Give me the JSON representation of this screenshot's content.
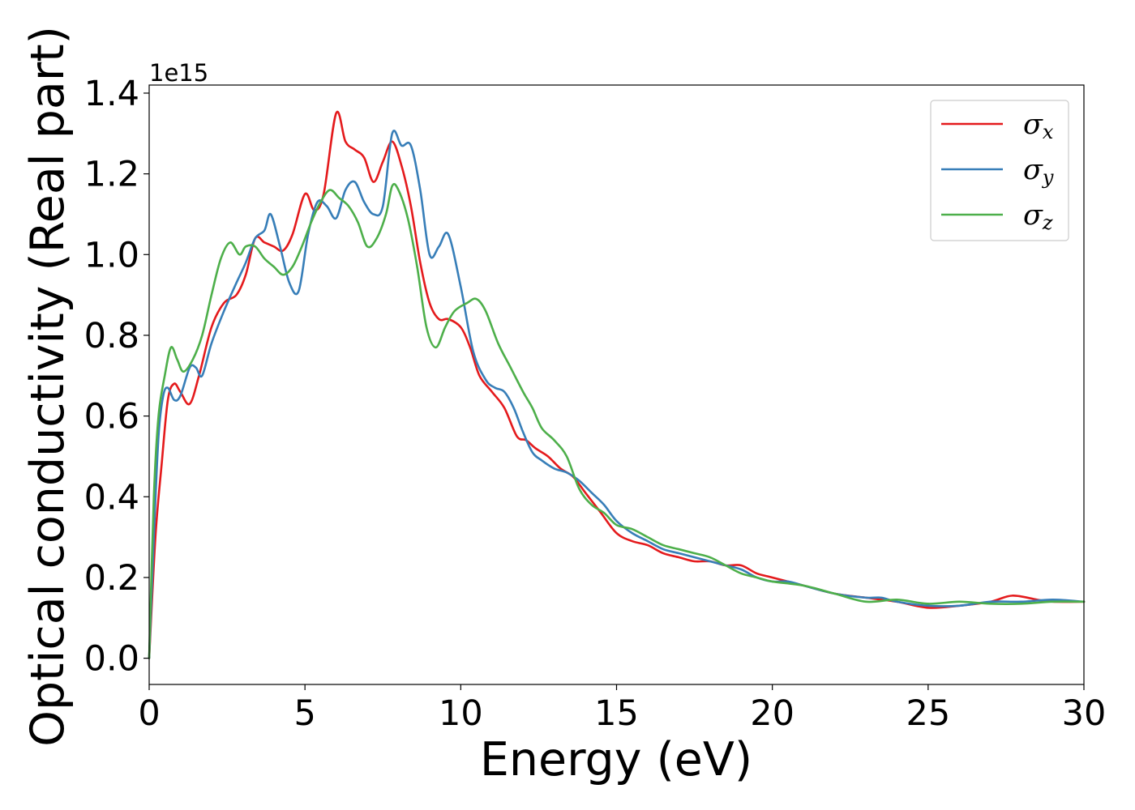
{
  "chart_data": {
    "type": "line",
    "title": "",
    "xlabel": "Energy (eV)",
    "ylabel": "Optical conductivity (Real part)",
    "y_offset_text": "1e15",
    "xlim": [
      0,
      30
    ],
    "ylim": [
      -0.065,
      1.42
    ],
    "xticks": [
      0,
      5,
      10,
      15,
      20,
      25,
      30
    ],
    "xtick_labels": [
      "0",
      "5",
      "10",
      "15",
      "20",
      "25",
      "30"
    ],
    "yticks": [
      0.0,
      0.2,
      0.4,
      0.6,
      0.8,
      1.0,
      1.2,
      1.4
    ],
    "ytick_labels": [
      "0.0",
      "0.2",
      "0.4",
      "0.6",
      "0.8",
      "1.0",
      "1.2",
      "1.4"
    ],
    "grid": false,
    "legend_position": "top-right",
    "series": [
      {
        "name": "σx",
        "legend_base": "σ",
        "legend_sub": "x",
        "color": "#e41a1c",
        "x": [
          0,
          0.2,
          0.4,
          0.6,
          0.8,
          1.0,
          1.3,
          1.6,
          2.0,
          2.4,
          2.8,
          3.1,
          3.4,
          3.7,
          4.0,
          4.3,
          4.6,
          5.0,
          5.3,
          5.6,
          6.0,
          6.3,
          6.6,
          6.9,
          7.2,
          7.5,
          7.8,
          8.1,
          8.4,
          8.7,
          9.0,
          9.3,
          9.6,
          10.0,
          10.3,
          10.6,
          11.0,
          11.4,
          11.8,
          12.1,
          12.4,
          12.8,
          13.2,
          13.6,
          14.0,
          14.5,
          15.0,
          15.5,
          16.0,
          16.5,
          17.0,
          17.5,
          18.0,
          18.5,
          19.0,
          19.5,
          20.0,
          21.0,
          22.0,
          23.0,
          24.0,
          25.0,
          26.0,
          27.0,
          27.7,
          28.5,
          29.0,
          30.0
        ],
        "y": [
          0.0,
          0.3,
          0.48,
          0.64,
          0.68,
          0.66,
          0.63,
          0.7,
          0.82,
          0.88,
          0.9,
          0.95,
          1.04,
          1.03,
          1.02,
          1.01,
          1.05,
          1.15,
          1.11,
          1.15,
          1.35,
          1.28,
          1.26,
          1.24,
          1.18,
          1.23,
          1.28,
          1.22,
          1.12,
          0.98,
          0.88,
          0.84,
          0.84,
          0.82,
          0.77,
          0.7,
          0.66,
          0.62,
          0.55,
          0.54,
          0.52,
          0.5,
          0.47,
          0.45,
          0.41,
          0.36,
          0.31,
          0.29,
          0.28,
          0.26,
          0.25,
          0.24,
          0.24,
          0.23,
          0.23,
          0.21,
          0.2,
          0.18,
          0.16,
          0.15,
          0.14,
          0.125,
          0.13,
          0.14,
          0.155,
          0.145,
          0.14,
          0.14
        ]
      },
      {
        "name": "σy",
        "legend_base": "σ",
        "legend_sub": "y",
        "color": "#377eb8",
        "x": [
          0,
          0.15,
          0.3,
          0.45,
          0.6,
          0.8,
          1.0,
          1.3,
          1.5,
          1.7,
          2.0,
          2.4,
          2.8,
          3.1,
          3.4,
          3.7,
          3.9,
          4.2,
          4.5,
          4.8,
          5.1,
          5.4,
          5.7,
          6.0,
          6.3,
          6.6,
          6.9,
          7.2,
          7.5,
          7.8,
          8.1,
          8.4,
          8.7,
          9.0,
          9.3,
          9.6,
          10.0,
          10.4,
          10.8,
          11.1,
          11.4,
          11.7,
          12.0,
          12.3,
          12.6,
          13.0,
          13.4,
          13.8,
          14.2,
          14.6,
          15.0,
          15.5,
          16.0,
          16.5,
          17.0,
          17.5,
          18.0,
          18.5,
          19.0,
          19.5,
          20.0,
          20.5,
          21.0,
          22.0,
          23.0,
          23.5,
          24.0,
          25.0,
          26.0,
          27.0,
          28.0,
          29.0,
          30.0
        ],
        "y": [
          0.0,
          0.3,
          0.55,
          0.65,
          0.67,
          0.64,
          0.65,
          0.72,
          0.72,
          0.7,
          0.78,
          0.86,
          0.93,
          0.98,
          1.04,
          1.06,
          1.1,
          1.02,
          0.93,
          0.91,
          1.05,
          1.13,
          1.12,
          1.09,
          1.16,
          1.18,
          1.13,
          1.1,
          1.12,
          1.3,
          1.27,
          1.27,
          1.16,
          1.0,
          1.02,
          1.05,
          0.92,
          0.76,
          0.69,
          0.67,
          0.66,
          0.62,
          0.56,
          0.51,
          0.49,
          0.47,
          0.46,
          0.44,
          0.41,
          0.38,
          0.34,
          0.31,
          0.29,
          0.27,
          0.26,
          0.25,
          0.24,
          0.23,
          0.22,
          0.2,
          0.19,
          0.19,
          0.18,
          0.16,
          0.15,
          0.15,
          0.14,
          0.13,
          0.13,
          0.14,
          0.14,
          0.145,
          0.14
        ]
      },
      {
        "name": "σz",
        "legend_base": "σ",
        "legend_sub": "z",
        "color": "#4daf4a",
        "x": [
          0,
          0.15,
          0.3,
          0.5,
          0.7,
          0.9,
          1.1,
          1.4,
          1.7,
          2.0,
          2.3,
          2.6,
          2.9,
          3.1,
          3.4,
          3.7,
          4.0,
          4.3,
          4.6,
          4.9,
          5.2,
          5.5,
          5.8,
          6.1,
          6.4,
          6.7,
          7.0,
          7.3,
          7.6,
          7.8,
          8.0,
          8.3,
          8.6,
          8.9,
          9.2,
          9.5,
          9.8,
          10.2,
          10.5,
          10.8,
          11.2,
          11.6,
          12.0,
          12.3,
          12.6,
          13.0,
          13.4,
          13.8,
          14.2,
          14.6,
          15.0,
          15.5,
          16.0,
          16.5,
          17.0,
          17.5,
          18.0,
          18.5,
          19.0,
          19.5,
          20.0,
          21.0,
          22.0,
          23.0,
          24.0,
          25.0,
          26.0,
          27.0,
          28.0,
          29.0,
          30.0
        ],
        "y": [
          0.0,
          0.4,
          0.6,
          0.7,
          0.77,
          0.74,
          0.71,
          0.74,
          0.8,
          0.9,
          0.99,
          1.03,
          1.0,
          1.02,
          1.02,
          0.99,
          0.97,
          0.95,
          0.97,
          1.02,
          1.08,
          1.13,
          1.16,
          1.14,
          1.12,
          1.08,
          1.02,
          1.04,
          1.1,
          1.17,
          1.16,
          1.09,
          0.97,
          0.82,
          0.77,
          0.82,
          0.86,
          0.88,
          0.89,
          0.86,
          0.78,
          0.72,
          0.66,
          0.62,
          0.57,
          0.54,
          0.5,
          0.42,
          0.38,
          0.36,
          0.33,
          0.32,
          0.3,
          0.28,
          0.27,
          0.26,
          0.25,
          0.23,
          0.21,
          0.2,
          0.19,
          0.18,
          0.16,
          0.14,
          0.145,
          0.135,
          0.14,
          0.135,
          0.135,
          0.14,
          0.14
        ]
      }
    ]
  }
}
